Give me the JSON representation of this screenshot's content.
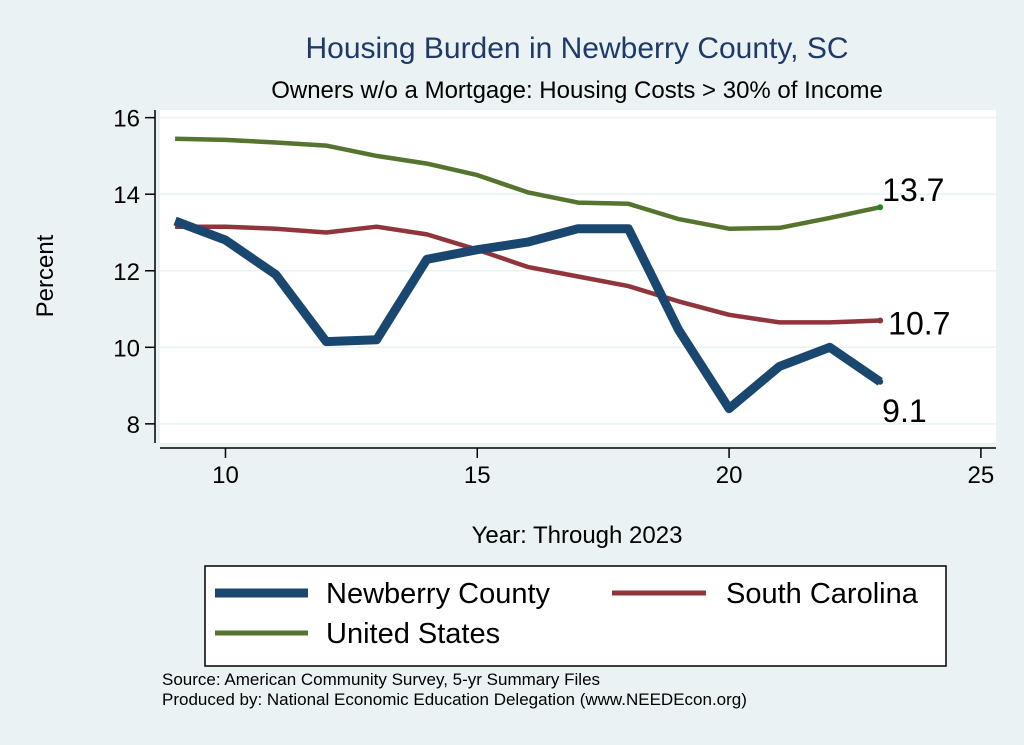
{
  "chart_data": {
    "type": "line",
    "title": "Housing Burden in Newberry County, SC",
    "subtitle": "Owners w/o a Mortgage: Housing Costs > 30% of Income",
    "xlabel": "Year: Through 2023",
    "ylabel": "Percent",
    "xlim": [
      8.7,
      25.3
    ],
    "ylim": [
      7.5,
      16.2
    ],
    "xticks": [
      10,
      15,
      20,
      25
    ],
    "yticks": [
      8,
      10,
      12,
      14,
      16
    ],
    "grid": true,
    "legend_position": "bottom",
    "x": [
      9,
      10,
      11,
      12,
      13,
      14,
      15,
      16,
      17,
      18,
      19,
      20,
      21,
      22,
      23
    ],
    "series": [
      {
        "name": "Newberry County",
        "color": "#1a476f",
        "values": [
          13.3,
          12.8,
          11.9,
          10.15,
          10.2,
          12.3,
          12.55,
          12.75,
          13.1,
          13.1,
          10.45,
          8.4,
          9.5,
          10.0,
          9.1
        ],
        "end_label": "9.1"
      },
      {
        "name": "South Carolina",
        "color": "#90353b",
        "values": [
          13.15,
          13.15,
          13.1,
          13.0,
          13.15,
          12.95,
          12.55,
          12.1,
          11.85,
          11.6,
          11.2,
          10.85,
          10.65,
          10.65,
          10.7
        ],
        "end_label": "10.7"
      },
      {
        "name": "United States",
        "color": "#55752f",
        "values": [
          15.45,
          15.42,
          15.35,
          15.27,
          15.0,
          14.8,
          14.5,
          14.05,
          13.78,
          13.75,
          13.35,
          13.1,
          13.12,
          13.38,
          13.66
        ],
        "end_label": "13.7"
      }
    ]
  },
  "notes": {
    "source": "Source: American Community Survey, 5-yr Summary Files",
    "produced_by": "Produced by: National Economic Education Delegation (www.NEEDEcon.org)"
  }
}
